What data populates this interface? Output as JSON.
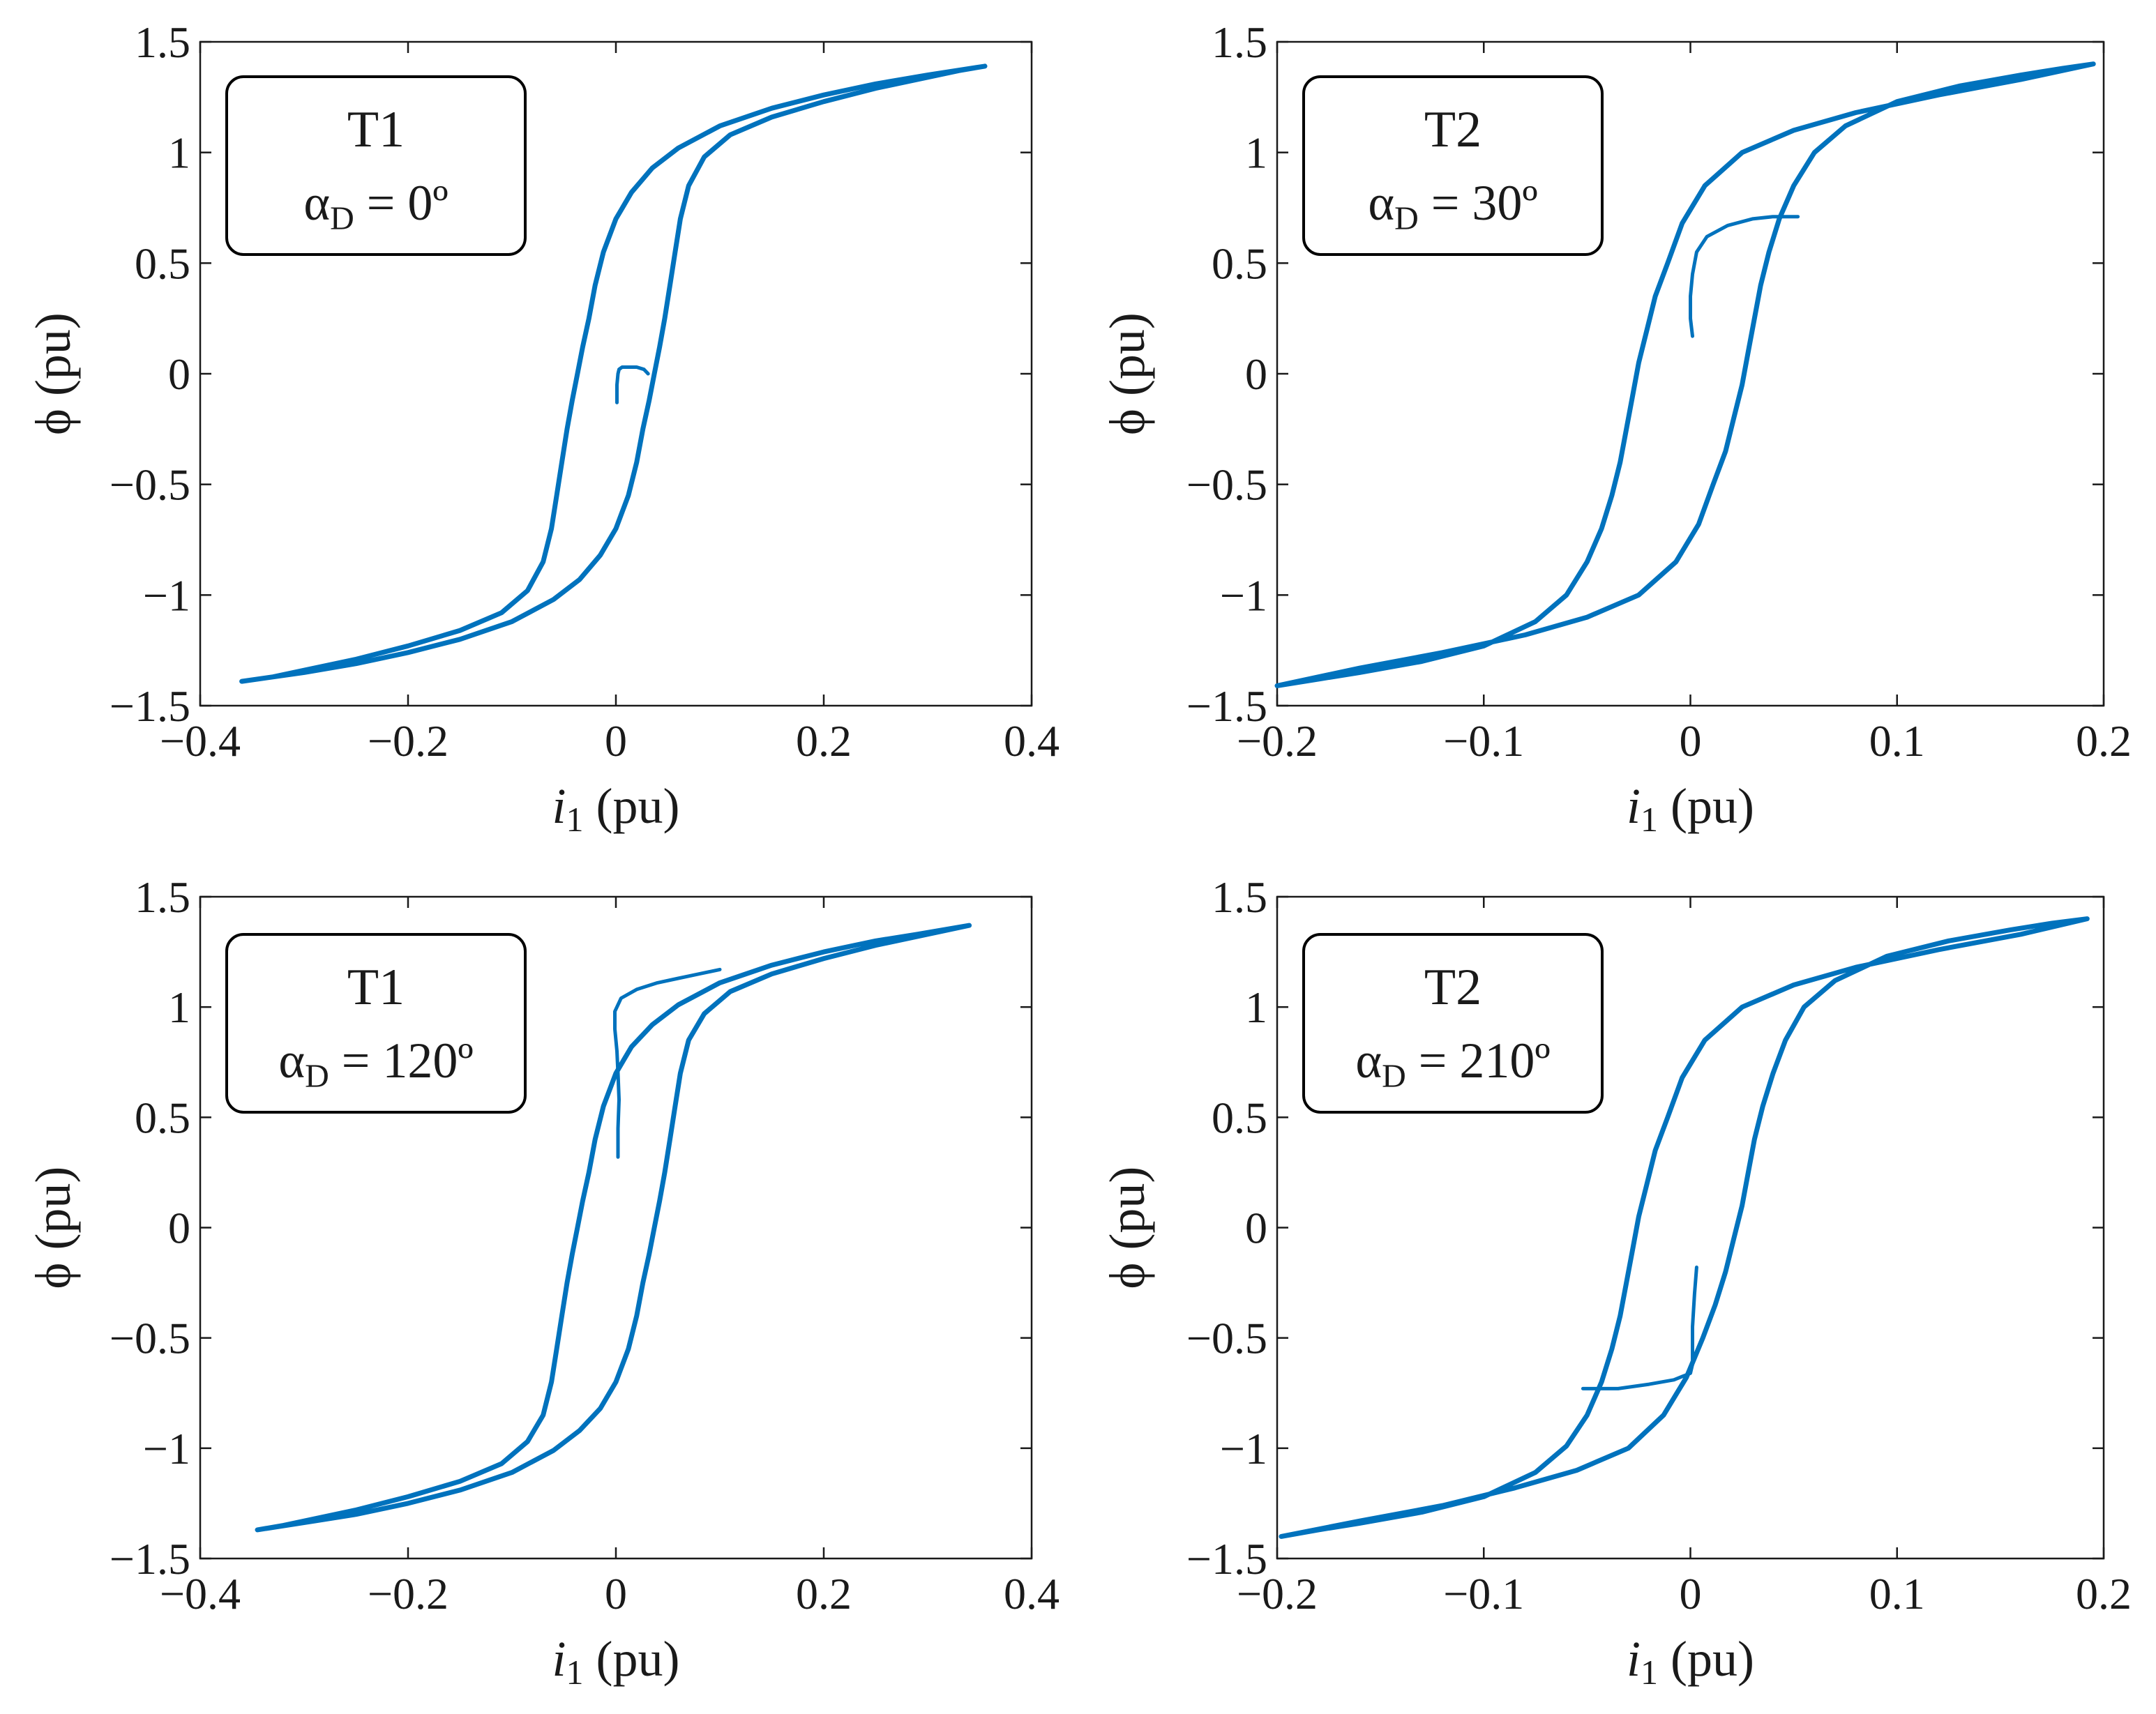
{
  "chart_data": [
    {
      "type": "line",
      "panel": "top-left",
      "box_title": "T1",
      "box_param": "αD = 0º",
      "box_param_symbol": "α",
      "box_param_sub": "D",
      "box_param_value": " = 0º",
      "xlabel_italic": "i",
      "xlabel_sub": "1",
      "xlabel_rest": " (pu)",
      "ylabel": "ϕ (pu)",
      "xlim": [
        -0.4,
        0.4
      ],
      "ylim": [
        -1.5,
        1.5
      ],
      "xticks": [
        -0.4,
        -0.2,
        0,
        0.2,
        0.4
      ],
      "xtick_labels": [
        "−0.4",
        "−0.2",
        "0",
        "0.2",
        "0.4"
      ],
      "yticks": [
        1.5,
        1,
        0.5,
        0,
        -0.5,
        -1,
        -1.5
      ],
      "ytick_labels": [
        "1.5",
        "1",
        "0.5",
        "0",
        "−0.5",
        "−1",
        "−1.5"
      ],
      "color": "#0072BD",
      "series": [
        {
          "name": "hysteresis-loop",
          "x": [
            0.355,
            0.33,
            0.3,
            0.25,
            0.2,
            0.15,
            0.11,
            0.085,
            0.07,
            0.062,
            0.057,
            0.052,
            0.047,
            0.042,
            0.037,
            0.032,
            0.026,
            0.02,
            0.012,
            0.0,
            -0.015,
            -0.035,
            -0.06,
            -0.1,
            -0.15,
            -0.2,
            -0.25,
            -0.3,
            -0.36,
            -0.33,
            -0.3,
            -0.25,
            -0.2,
            -0.15,
            -0.11,
            -0.085,
            -0.07,
            -0.062,
            -0.057,
            -0.052,
            -0.047,
            -0.042,
            -0.037,
            -0.032,
            -0.026,
            -0.02,
            -0.012,
            0.0,
            0.015,
            0.035,
            0.06,
            0.1,
            0.15,
            0.2,
            0.25,
            0.3,
            0.355
          ],
          "y": [
            1.39,
            1.37,
            1.34,
            1.29,
            1.23,
            1.16,
            1.08,
            0.98,
            0.85,
            0.7,
            0.55,
            0.4,
            0.25,
            0.12,
            0.0,
            -0.12,
            -0.25,
            -0.4,
            -0.55,
            -0.7,
            -0.82,
            -0.93,
            -1.02,
            -1.12,
            -1.2,
            -1.26,
            -1.31,
            -1.35,
            -1.39,
            -1.37,
            -1.34,
            -1.29,
            -1.23,
            -1.16,
            -1.08,
            -0.98,
            -0.85,
            -0.7,
            -0.55,
            -0.4,
            -0.25,
            -0.12,
            0.0,
            0.12,
            0.25,
            0.4,
            0.55,
            0.7,
            0.82,
            0.93,
            1.02,
            1.12,
            1.2,
            1.26,
            1.31,
            1.35,
            1.39
          ]
        },
        {
          "name": "initial-transient",
          "x": [
            0.001,
            0.001,
            0.002,
            0.003,
            0.006,
            0.012,
            0.02,
            0.027,
            0.031
          ],
          "y": [
            -0.13,
            -0.05,
            0.0,
            0.02,
            0.03,
            0.03,
            0.03,
            0.02,
            0.0
          ]
        }
      ]
    },
    {
      "type": "line",
      "panel": "top-right",
      "box_title": "T2",
      "box_param": "αD = 30º",
      "box_param_symbol": "α",
      "box_param_sub": "D",
      "box_param_value": " = 30º",
      "xlabel_italic": "i",
      "xlabel_sub": "1",
      "xlabel_rest": " (pu)",
      "ylabel": "ϕ (pu)",
      "xlim": [
        -0.2,
        0.2
      ],
      "ylim": [
        -1.5,
        1.5
      ],
      "xticks": [
        -0.2,
        -0.1,
        0,
        0.1,
        0.2
      ],
      "xtick_labels": [
        "−0.2",
        "−0.1",
        "0",
        "0.1",
        "0.2"
      ],
      "yticks": [
        1.5,
        1,
        0.5,
        0,
        -0.5,
        -1,
        -1.5
      ],
      "ytick_labels": [
        "1.5",
        "1",
        "0.5",
        "0",
        "−0.5",
        "−1",
        "−1.5"
      ],
      "color": "#0072BD",
      "series": [
        {
          "name": "hysteresis-loop",
          "x": [
            0.195,
            0.18,
            0.16,
            0.13,
            0.1,
            0.075,
            0.06,
            0.05,
            0.043,
            0.038,
            0.034,
            0.031,
            0.028,
            0.025,
            0.021,
            0.017,
            0.011,
            0.004,
            -0.007,
            -0.025,
            -0.05,
            -0.08,
            -0.12,
            -0.16,
            -0.2,
            -0.18,
            -0.16,
            -0.13,
            -0.1,
            -0.075,
            -0.06,
            -0.05,
            -0.043,
            -0.038,
            -0.034,
            -0.031,
            -0.028,
            -0.025,
            -0.021,
            -0.017,
            -0.011,
            -0.004,
            0.007,
            0.025,
            0.05,
            0.08,
            0.12,
            0.16,
            0.195
          ],
          "y": [
            1.4,
            1.38,
            1.35,
            1.3,
            1.23,
            1.12,
            1.0,
            0.85,
            0.7,
            0.55,
            0.4,
            0.25,
            0.1,
            -0.05,
            -0.2,
            -0.35,
            -0.5,
            -0.68,
            -0.85,
            -1.0,
            -1.1,
            -1.18,
            -1.26,
            -1.33,
            -1.41,
            -1.38,
            -1.35,
            -1.3,
            -1.23,
            -1.12,
            -1.0,
            -0.85,
            -0.7,
            -0.55,
            -0.4,
            -0.25,
            -0.1,
            0.05,
            0.2,
            0.35,
            0.5,
            0.68,
            0.85,
            1.0,
            1.1,
            1.18,
            1.26,
            1.33,
            1.4
          ]
        },
        {
          "name": "initial-transient",
          "x": [
            0.001,
            0.0,
            0.0,
            0.001,
            0.003,
            0.008,
            0.018,
            0.03,
            0.04,
            0.048,
            0.052
          ],
          "y": [
            0.17,
            0.25,
            0.35,
            0.45,
            0.55,
            0.62,
            0.67,
            0.7,
            0.71,
            0.71,
            0.71
          ]
        }
      ]
    },
    {
      "type": "line",
      "panel": "bottom-left",
      "box_title": "T1",
      "box_param": "αD = 120º",
      "box_param_symbol": "α",
      "box_param_sub": "D",
      "box_param_value": " = 120º",
      "xlabel_italic": "i",
      "xlabel_sub": "1",
      "xlabel_rest": " (pu)",
      "ylabel": "ϕ (pu)",
      "xlim": [
        -0.4,
        0.4
      ],
      "ylim": [
        -1.5,
        1.5
      ],
      "xticks": [
        -0.4,
        -0.2,
        0,
        0.2,
        0.4
      ],
      "xtick_labels": [
        "−0.4",
        "−0.2",
        "0",
        "0.2",
        "0.4"
      ],
      "yticks": [
        1.5,
        1,
        0.5,
        0,
        -0.5,
        -1,
        -1.5
      ],
      "ytick_labels": [
        "1.5",
        "1",
        "0.5",
        "0",
        "−0.5",
        "−1",
        "−1.5"
      ],
      "color": "#0072BD",
      "series": [
        {
          "name": "hysteresis-loop",
          "x": [
            0.34,
            0.32,
            0.29,
            0.25,
            0.2,
            0.15,
            0.11,
            0.085,
            0.07,
            0.062,
            0.057,
            0.052,
            0.047,
            0.042,
            0.037,
            0.032,
            0.026,
            0.02,
            0.012,
            0.0,
            -0.015,
            -0.035,
            -0.06,
            -0.1,
            -0.15,
            -0.2,
            -0.25,
            -0.29,
            -0.345,
            -0.32,
            -0.29,
            -0.25,
            -0.2,
            -0.15,
            -0.11,
            -0.085,
            -0.07,
            -0.062,
            -0.057,
            -0.052,
            -0.047,
            -0.042,
            -0.037,
            -0.032,
            -0.026,
            -0.02,
            -0.012,
            0.0,
            0.015,
            0.035,
            0.06,
            0.1,
            0.15,
            0.2,
            0.25,
            0.29,
            0.34
          ],
          "y": [
            1.37,
            1.35,
            1.32,
            1.28,
            1.22,
            1.15,
            1.07,
            0.97,
            0.85,
            0.7,
            0.55,
            0.4,
            0.25,
            0.12,
            0.0,
            -0.12,
            -0.25,
            -0.4,
            -0.55,
            -0.7,
            -0.82,
            -0.92,
            -1.01,
            -1.11,
            -1.19,
            -1.25,
            -1.3,
            -1.33,
            -1.37,
            -1.35,
            -1.32,
            -1.28,
            -1.22,
            -1.15,
            -1.07,
            -0.97,
            -0.85,
            -0.7,
            -0.55,
            -0.4,
            -0.25,
            -0.12,
            0.0,
            0.12,
            0.25,
            0.4,
            0.55,
            0.7,
            0.82,
            0.92,
            1.01,
            1.11,
            1.19,
            1.25,
            1.3,
            1.33,
            1.37
          ]
        },
        {
          "name": "initial-transient",
          "x": [
            0.002,
            0.002,
            0.003,
            0.002,
            0.001,
            -0.001,
            -0.001,
            0.005,
            0.02,
            0.04,
            0.06,
            0.08,
            0.1
          ],
          "y": [
            0.32,
            0.45,
            0.58,
            0.7,
            0.8,
            0.9,
            0.98,
            1.04,
            1.08,
            1.11,
            1.13,
            1.15,
            1.17
          ]
        }
      ]
    },
    {
      "type": "line",
      "panel": "bottom-right",
      "box_title": "T2",
      "box_param": "αD = 210º",
      "box_param_symbol": "α",
      "box_param_sub": "D",
      "box_param_value": " = 210º",
      "xlabel_italic": "i",
      "xlabel_sub": "1",
      "xlabel_rest": " (pu)",
      "ylabel": "ϕ (pu)",
      "xlim": [
        -0.2,
        0.2
      ],
      "ylim": [
        -1.5,
        1.5
      ],
      "xticks": [
        -0.2,
        -0.1,
        0,
        0.1,
        0.2
      ],
      "xtick_labels": [
        "−0.2",
        "−0.1",
        "0",
        "0.1",
        "0.2"
      ],
      "yticks": [
        1.5,
        1,
        0.5,
        0,
        -0.5,
        -1,
        -1.5
      ],
      "ytick_labels": [
        "1.5",
        "1",
        "0.5",
        "0",
        "−0.5",
        "−1",
        "−1.5"
      ],
      "color": "#0072BD",
      "series": [
        {
          "name": "hysteresis-loop",
          "x": [
            0.192,
            0.175,
            0.155,
            0.125,
            0.095,
            0.07,
            0.055,
            0.046,
            0.04,
            0.035,
            0.031,
            0.028,
            0.025,
            0.021,
            0.017,
            0.012,
            0.006,
            -0.002,
            -0.013,
            -0.03,
            -0.055,
            -0.085,
            -0.12,
            -0.16,
            -0.198,
            -0.18,
            -0.16,
            -0.13,
            -0.1,
            -0.075,
            -0.06,
            -0.05,
            -0.043,
            -0.038,
            -0.034,
            -0.031,
            -0.028,
            -0.025,
            -0.021,
            -0.017,
            -0.011,
            -0.004,
            0.007,
            0.025,
            0.05,
            0.08,
            0.12,
            0.16,
            0.192
          ],
          "y": [
            1.4,
            1.38,
            1.35,
            1.3,
            1.23,
            1.12,
            1.0,
            0.85,
            0.7,
            0.55,
            0.4,
            0.25,
            0.1,
            -0.05,
            -0.2,
            -0.35,
            -0.5,
            -0.68,
            -0.85,
            -1.0,
            -1.1,
            -1.18,
            -1.26,
            -1.33,
            -1.4,
            -1.37,
            -1.34,
            -1.29,
            -1.22,
            -1.11,
            -0.99,
            -0.85,
            -0.7,
            -0.55,
            -0.4,
            -0.25,
            -0.1,
            0.05,
            0.2,
            0.35,
            0.5,
            0.68,
            0.85,
            1.0,
            1.1,
            1.18,
            1.26,
            1.33,
            1.4
          ]
        },
        {
          "name": "initial-transient",
          "x": [
            0.003,
            0.002,
            0.001,
            0.001,
            0.001,
            0.0,
            -0.008,
            -0.02,
            -0.035,
            -0.046,
            -0.052
          ],
          "y": [
            -0.18,
            -0.3,
            -0.45,
            -0.55,
            -0.62,
            -0.66,
            -0.69,
            -0.71,
            -0.73,
            -0.73,
            -0.73
          ]
        }
      ]
    }
  ]
}
